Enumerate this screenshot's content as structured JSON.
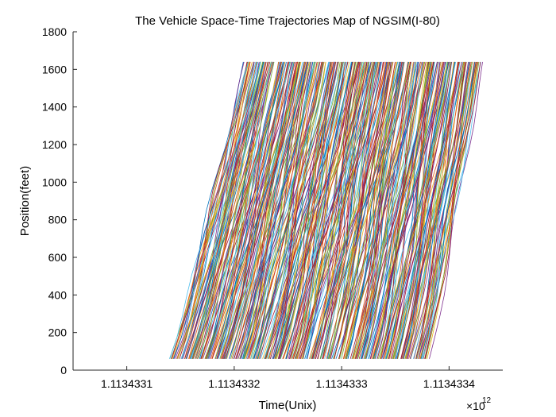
{
  "chart_data": {
    "type": "line",
    "title": "The Vehicle Space-Time Trajectories Map of NGSIM(I-80)",
    "xlabel": "Time(Unix)",
    "ylabel": "Position(feet)",
    "x_exponent_label": "×10",
    "x_exponent_value": "12",
    "xlim": [
      1.11343305,
      1.11343345
    ],
    "ylim": [
      0,
      1800
    ],
    "xticks": [
      1.1134331,
      1.1134332,
      1.1134333,
      1.1134334
    ],
    "xtick_labels": [
      "1.1134331",
      "1.1134332",
      "1.1134333",
      "1.1134334"
    ],
    "yticks": [
      0,
      200,
      400,
      600,
      800,
      1000,
      1200,
      1400,
      1600,
      1800
    ],
    "ytick_labels": [
      "0",
      "200",
      "400",
      "600",
      "800",
      "1000",
      "1200",
      "1400",
      "1600",
      "1800"
    ],
    "grid": false,
    "legend": "none",
    "series_colors": [
      "#0072BD",
      "#D95319",
      "#EDB120",
      "#7E2F8E",
      "#77AC30",
      "#4DBEEE",
      "#A2142F"
    ],
    "trajectories": {
      "count": 420,
      "position_start_feet": 60,
      "position_end_feet": 1640,
      "first_entry_time": 1.11343314,
      "last_entry_time": 1.11343338,
      "first_exit_time": 1.11343321,
      "last_exit_time": 1.11343343
    }
  }
}
